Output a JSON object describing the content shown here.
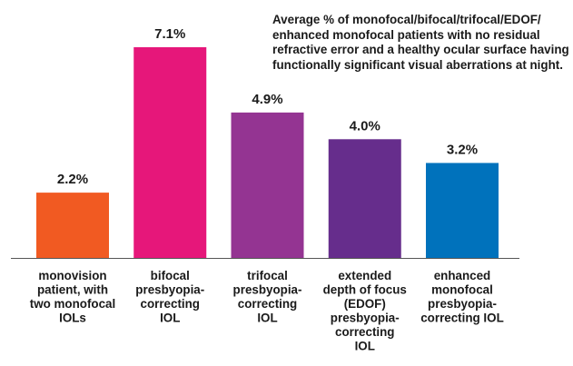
{
  "chart_data": {
    "type": "bar",
    "title_lines": [
      "Average % of monofocal/bifocal/trifocal/EDOF/",
      "enhanced monofocal patients with no residual",
      "refractive error and a healthy ocular surface having",
      "functionally significant visual aberrations at night."
    ],
    "categories": [
      [
        "monovision",
        "patient, with",
        "two monofocal",
        "IOLs"
      ],
      [
        "bifocal",
        "presbyopia-",
        "correcting",
        "IOL"
      ],
      [
        "trifocal",
        "presbyopia-",
        "correcting",
        "IOL"
      ],
      [
        "extended",
        "depth of focus",
        "(EDOF)",
        "presbyopia-",
        "correcting",
        "IOL"
      ],
      [
        "enhanced",
        "monofocal",
        "presbyopia-",
        "correcting IOL"
      ]
    ],
    "values": [
      2.2,
      7.1,
      4.9,
      4.0,
      3.2
    ],
    "value_labels": [
      "2.2%",
      "7.1%",
      "4.9%",
      "4.0%",
      "3.2%"
    ],
    "colors": [
      "#f15a22",
      "#e6177a",
      "#943492",
      "#662d8c",
      "#0072bc"
    ],
    "ylim": [
      0,
      7.1
    ],
    "grid": false,
    "legend": "none"
  }
}
